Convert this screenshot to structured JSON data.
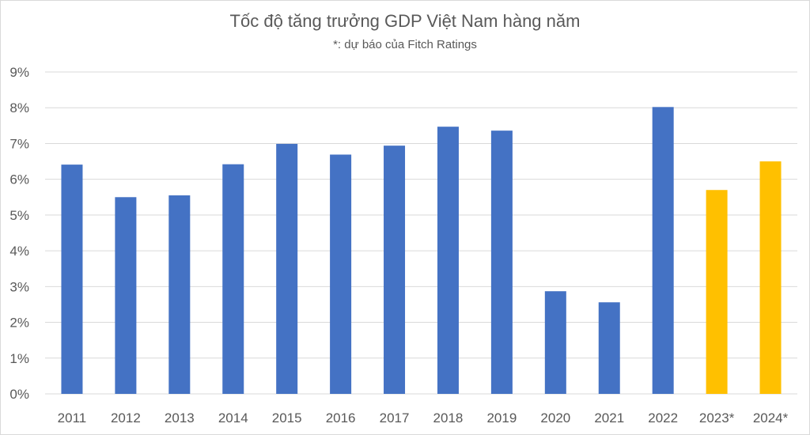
{
  "chart_data": {
    "type": "bar",
    "title": "Tốc độ tăng trưởng GDP Việt Nam hàng năm",
    "subtitle": "*: dự báo của Fitch Ratings",
    "xlabel": "",
    "ylabel": "",
    "categories": [
      "2011",
      "2012",
      "2013",
      "2014",
      "2015",
      "2016",
      "2017",
      "2018",
      "2019",
      "2020",
      "2021",
      "2022",
      "2023*",
      "2024*"
    ],
    "values": [
      6.41,
      5.5,
      5.55,
      6.42,
      6.99,
      6.69,
      6.94,
      7.47,
      7.36,
      2.87,
      2.56,
      8.02,
      5.7,
      6.5
    ],
    "forecast": [
      false,
      false,
      false,
      false,
      false,
      false,
      false,
      false,
      false,
      false,
      false,
      false,
      true,
      true
    ],
    "ylim": [
      0,
      9
    ],
    "yticks": [
      0,
      1,
      2,
      3,
      4,
      5,
      6,
      7,
      8,
      9
    ],
    "ytick_labels": [
      "0%",
      "1%",
      "2%",
      "3%",
      "4%",
      "5%",
      "6%",
      "7%",
      "8%",
      "9%"
    ],
    "grid": true,
    "colors": {
      "actual": "#4472c4",
      "forecast": "#ffc000",
      "grid": "#d9d9d9",
      "text": "#595959"
    }
  }
}
